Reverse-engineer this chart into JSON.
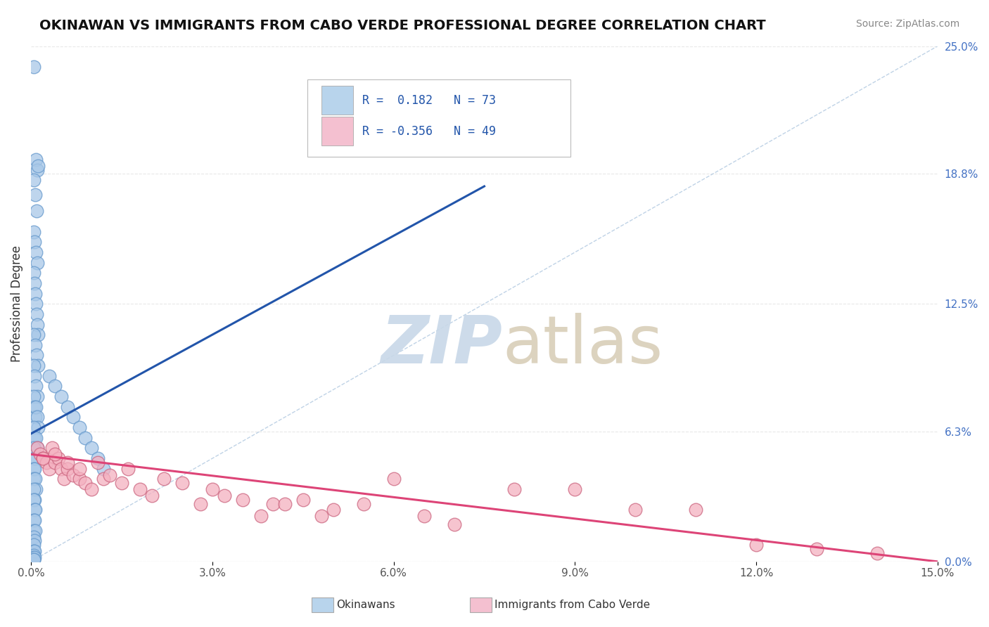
{
  "title": "OKINAWAN VS IMMIGRANTS FROM CABO VERDE PROFESSIONAL DEGREE CORRELATION CHART",
  "source": "Source: ZipAtlas.com",
  "xlabel_vals": [
    0.0,
    3.0,
    6.0,
    9.0,
    12.0,
    15.0
  ],
  "ylabel": "Professional Degree",
  "ylabel_right_vals": [
    0.0,
    6.3,
    12.5,
    18.8,
    25.0
  ],
  "xmin": 0.0,
  "xmax": 15.0,
  "ymin": 0.0,
  "ymax": 25.0,
  "blue_R": 0.182,
  "blue_N": 73,
  "pink_R": -0.356,
  "pink_N": 49,
  "blue_color": "#a8c8e8",
  "blue_edge_color": "#6699cc",
  "pink_color": "#f4b0c0",
  "pink_edge_color": "#cc6680",
  "blue_line_color": "#2255aa",
  "pink_line_color": "#dd4477",
  "legend_blue_box": "#b8d4ec",
  "legend_pink_box": "#f4c0d0",
  "blue_scatter_x": [
    0.05,
    0.08,
    0.1,
    0.12,
    0.05,
    0.07,
    0.09,
    0.05,
    0.06,
    0.08,
    0.1,
    0.05,
    0.06,
    0.07,
    0.08,
    0.09,
    0.1,
    0.12,
    0.05,
    0.07,
    0.09,
    0.11,
    0.05,
    0.06,
    0.08,
    0.1,
    0.05,
    0.06,
    0.07,
    0.08,
    0.1,
    0.12,
    0.05,
    0.06,
    0.08,
    0.1,
    0.05,
    0.06,
    0.07,
    0.05,
    0.06,
    0.05,
    0.07,
    0.08,
    0.05,
    0.06,
    0.05,
    0.06,
    0.07,
    0.05,
    0.06,
    0.05,
    0.07,
    0.05,
    0.06,
    0.05,
    0.05,
    0.06,
    0.05,
    0.05,
    0.06,
    0.05,
    0.05,
    0.3,
    0.4,
    0.5,
    0.6,
    0.7,
    0.8,
    0.9,
    1.0,
    1.1,
    1.2
  ],
  "blue_scatter_y": [
    24.0,
    19.5,
    19.0,
    19.2,
    18.5,
    17.8,
    17.0,
    16.0,
    15.5,
    15.0,
    14.5,
    14.0,
    13.5,
    13.0,
    12.5,
    12.0,
    11.5,
    11.0,
    11.0,
    10.5,
    10.0,
    9.5,
    9.5,
    9.0,
    8.5,
    8.0,
    8.0,
    7.5,
    7.0,
    7.5,
    7.0,
    6.5,
    6.5,
    6.0,
    6.0,
    5.5,
    5.5,
    5.0,
    5.0,
    4.5,
    4.5,
    4.0,
    4.0,
    3.5,
    3.5,
    3.0,
    3.0,
    2.5,
    2.5,
    2.0,
    2.0,
    1.5,
    1.5,
    1.2,
    1.0,
    0.8,
    0.5,
    0.5,
    0.3,
    0.2,
    0.2,
    0.1,
    0.1,
    9.0,
    8.5,
    8.0,
    7.5,
    7.0,
    6.5,
    6.0,
    5.5,
    5.0,
    4.5
  ],
  "pink_scatter_x": [
    0.1,
    0.15,
    0.2,
    0.25,
    0.3,
    0.35,
    0.4,
    0.45,
    0.5,
    0.55,
    0.6,
    0.7,
    0.8,
    0.9,
    1.0,
    1.2,
    1.5,
    1.8,
    2.0,
    2.5,
    3.0,
    3.5,
    4.0,
    4.5,
    5.0,
    5.5,
    6.0,
    6.5,
    7.0,
    8.0,
    9.0,
    10.0,
    11.0,
    12.0,
    13.0,
    14.0,
    0.2,
    0.4,
    0.6,
    0.8,
    1.1,
    1.3,
    1.6,
    2.2,
    2.8,
    3.2,
    3.8,
    4.2,
    4.8
  ],
  "pink_scatter_y": [
    5.5,
    5.2,
    5.0,
    4.8,
    4.5,
    5.5,
    4.8,
    5.0,
    4.5,
    4.0,
    4.5,
    4.2,
    4.0,
    3.8,
    3.5,
    4.0,
    3.8,
    3.5,
    3.2,
    3.8,
    3.5,
    3.0,
    2.8,
    3.0,
    2.5,
    2.8,
    4.0,
    2.2,
    1.8,
    3.5,
    3.5,
    2.5,
    2.5,
    0.8,
    0.6,
    0.4,
    5.0,
    5.2,
    4.8,
    4.5,
    4.8,
    4.2,
    4.5,
    4.0,
    2.8,
    3.2,
    2.2,
    2.8,
    2.2
  ],
  "background_color": "#ffffff",
  "grid_color": "#e8e8e8",
  "ref_line_color": "#b0c8e0"
}
